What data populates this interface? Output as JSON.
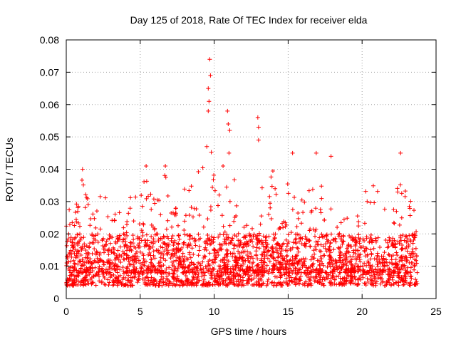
{
  "chart_data": {
    "type": "scatter",
    "title": "Day 125 of 2018, Rate Of TEC Index for receiver elda",
    "xlabel": "GPS time / hours",
    "ylabel": "ROTI / TECUs",
    "xlim": [
      0,
      25
    ],
    "ylim": [
      0,
      0.08
    ],
    "xticks": [
      0,
      5,
      10,
      15,
      20,
      25
    ],
    "xtick_labels": [
      "0",
      "5",
      "10",
      "15",
      "20",
      "25"
    ],
    "yticks": [
      0,
      0.01,
      0.02,
      0.03,
      0.04,
      0.05,
      0.06,
      0.07,
      0.08
    ],
    "ytick_labels": [
      "0",
      "0.01",
      "0.02",
      "0.03",
      "0.04",
      "0.05",
      "0.06",
      "0.07",
      "0.08"
    ],
    "grid": true,
    "marker": "+",
    "series": [
      {
        "name": "ROTI",
        "color": "#ff0000",
        "x_start": 0,
        "x_end": 23.8,
        "baseline_range": [
          0.004,
          0.02
        ],
        "notable_points": [
          {
            "x": 9.7,
            "y": 0.074
          },
          {
            "x": 9.75,
            "y": 0.069
          },
          {
            "x": 9.6,
            "y": 0.065
          },
          {
            "x": 9.65,
            "y": 0.061
          },
          {
            "x": 9.6,
            "y": 0.058
          },
          {
            "x": 9.5,
            "y": 0.047
          },
          {
            "x": 10.9,
            "y": 0.058
          },
          {
            "x": 10.95,
            "y": 0.054
          },
          {
            "x": 11.05,
            "y": 0.052
          },
          {
            "x": 11.0,
            "y": 0.045
          },
          {
            "x": 12.95,
            "y": 0.056
          },
          {
            "x": 13.0,
            "y": 0.053
          },
          {
            "x": 13.0,
            "y": 0.049
          },
          {
            "x": 15.3,
            "y": 0.045
          },
          {
            "x": 16.9,
            "y": 0.045
          },
          {
            "x": 17.9,
            "y": 0.044
          },
          {
            "x": 22.6,
            "y": 0.045
          },
          {
            "x": 10.6,
            "y": 0.041
          },
          {
            "x": 1.1,
            "y": 0.04
          },
          {
            "x": 5.4,
            "y": 0.041
          },
          {
            "x": 6.7,
            "y": 0.041
          }
        ],
        "envelope": [
          [
            0,
            0.028
          ],
          [
            0.5,
            0.029
          ],
          [
            1.0,
            0.037
          ],
          [
            1.2,
            0.04
          ],
          [
            1.6,
            0.026
          ],
          [
            2.1,
            0.032
          ],
          [
            2.7,
            0.032
          ],
          [
            3.3,
            0.027
          ],
          [
            3.9,
            0.028
          ],
          [
            4.5,
            0.034
          ],
          [
            5.0,
            0.033
          ],
          [
            5.4,
            0.041
          ],
          [
            6.0,
            0.03
          ],
          [
            6.7,
            0.041
          ],
          [
            7.3,
            0.027
          ],
          [
            8.1,
            0.036
          ],
          [
            8.8,
            0.038
          ],
          [
            9.3,
            0.043
          ],
          [
            9.8,
            0.048
          ],
          [
            10.2,
            0.039
          ],
          [
            10.7,
            0.035
          ],
          [
            11.3,
            0.038
          ],
          [
            12.0,
            0.026
          ],
          [
            12.5,
            0.034
          ],
          [
            13.5,
            0.039
          ],
          [
            14.0,
            0.04
          ],
          [
            14.5,
            0.037
          ],
          [
            15.0,
            0.038
          ],
          [
            15.5,
            0.033
          ],
          [
            16.0,
            0.032
          ],
          [
            16.5,
            0.038
          ],
          [
            17.0,
            0.04
          ],
          [
            17.5,
            0.032
          ],
          [
            18.0,
            0.033
          ],
          [
            18.5,
            0.028
          ],
          [
            19.0,
            0.026
          ],
          [
            19.5,
            0.022
          ],
          [
            20.0,
            0.032
          ],
          [
            20.5,
            0.036
          ],
          [
            21.0,
            0.035
          ],
          [
            21.5,
            0.029
          ],
          [
            22.0,
            0.025
          ],
          [
            22.5,
            0.039
          ],
          [
            23.0,
            0.034
          ],
          [
            23.5,
            0.03
          ],
          [
            23.8,
            0.022
          ]
        ]
      }
    ]
  }
}
